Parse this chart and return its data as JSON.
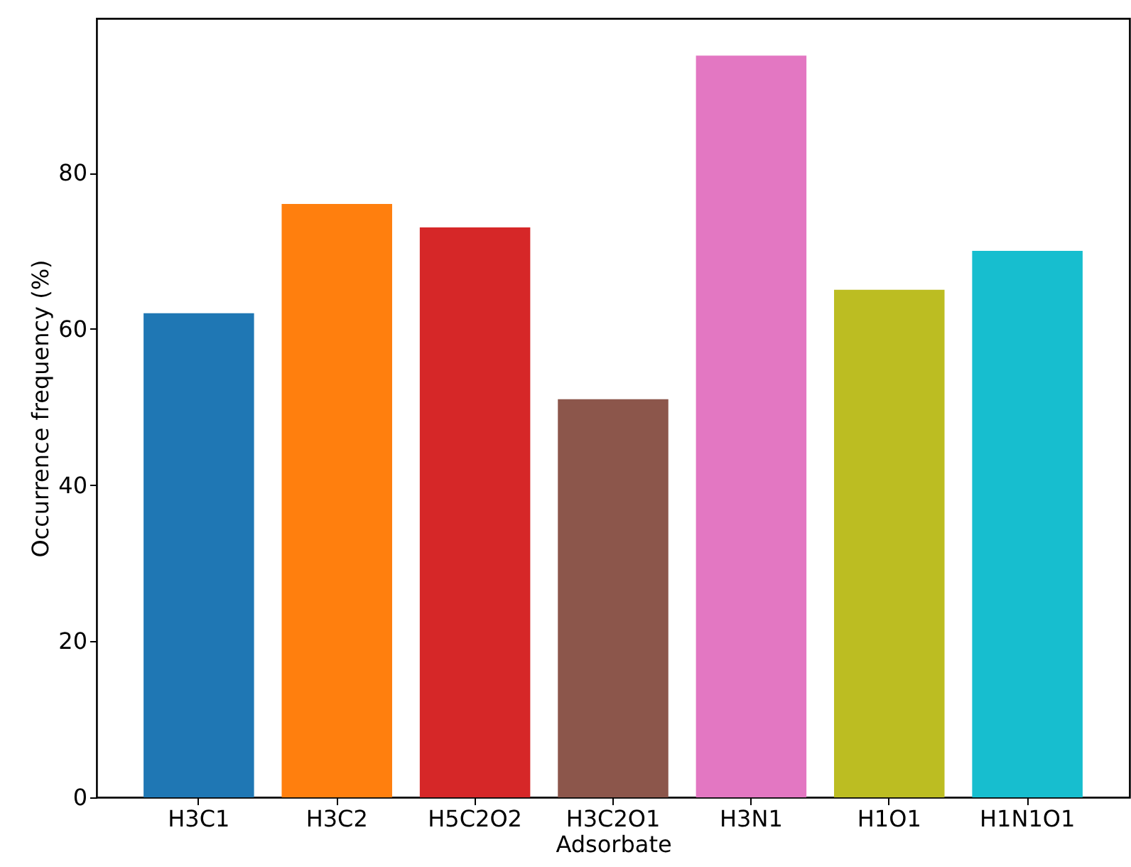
{
  "chart_data": {
    "type": "bar",
    "xlabel": "Adsorbate",
    "ylabel": "Occurrence frequency (%)",
    "categories": [
      "H3C1",
      "H3C2",
      "H5C2O2",
      "H3C2O1",
      "H3N1",
      "H1O1",
      "H1N1O1"
    ],
    "values": [
      62,
      76,
      73,
      51,
      95,
      65,
      70
    ],
    "colors": [
      "#1f77b4",
      "#ff7f0e",
      "#d62728",
      "#8c564b",
      "#e377c2",
      "#bcbd22",
      "#17becf"
    ],
    "ylim": [
      0,
      99.75
    ],
    "yticks": [
      0,
      20,
      40,
      60,
      80
    ],
    "grid": false
  }
}
